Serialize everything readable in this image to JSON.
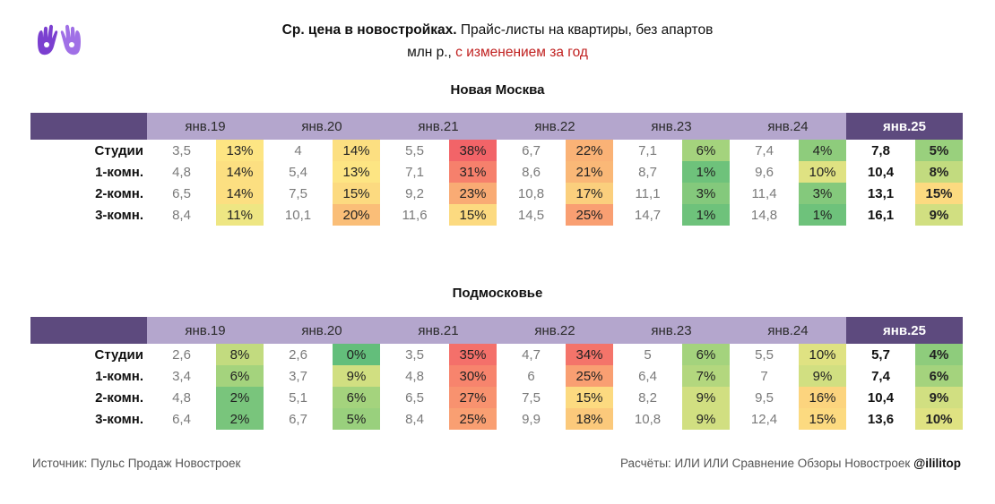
{
  "title": {
    "bold": "Ср. цена в новостройках.",
    "normal": " Прайс-листы на квартиры, без апартов",
    "line2_normal": "млн р., ",
    "line2_red": "с изменением за год"
  },
  "colors": {
    "header_period": "#b4a6cd",
    "header_corner": "#5d4a7e",
    "change_red": "#c0201f"
  },
  "logo": {
    "icon": "two-raised-hands-logo"
  },
  "periods": [
    "янв.19",
    "янв.20",
    "янв.21",
    "янв.22",
    "янв.23",
    "янв.24",
    "янв.25"
  ],
  "chart_data": [
    {
      "type": "table",
      "title": "Новая Москва",
      "columns": [
        "янв.19",
        "янв.20",
        "янв.21",
        "янв.22",
        "янв.23",
        "янв.24",
        "янв.25"
      ],
      "rows": [
        {
          "label": "Студии",
          "prices": [
            "3,5",
            "4",
            "5,5",
            "6,7",
            "7,1",
            "7,4",
            "7,8"
          ],
          "changes": [
            "13%",
            "14%",
            "38%",
            "22%",
            "6%",
            "4%",
            "5%"
          ]
        },
        {
          "label": "1-комн.",
          "prices": [
            "4,8",
            "5,4",
            "7,1",
            "8,6",
            "8,7",
            "9,6",
            "10,4"
          ],
          "changes": [
            "14%",
            "13%",
            "31%",
            "21%",
            "1%",
            "10%",
            "8%"
          ]
        },
        {
          "label": "2-комн.",
          "prices": [
            "6,5",
            "7,5",
            "9,2",
            "10,8",
            "11,1",
            "11,4",
            "13,1"
          ],
          "changes": [
            "14%",
            "15%",
            "23%",
            "17%",
            "3%",
            "3%",
            "15%"
          ]
        },
        {
          "label": "3-комн.",
          "prices": [
            "8,4",
            "10,1",
            "11,6",
            "14,5",
            "14,7",
            "14,8",
            "16,1"
          ],
          "changes": [
            "11%",
            "20%",
            "15%",
            "25%",
            "1%",
            "1%",
            "9%"
          ]
        }
      ]
    },
    {
      "type": "table",
      "title": "Подмосковье",
      "columns": [
        "янв.19",
        "янв.20",
        "янв.21",
        "янв.22",
        "янв.23",
        "янв.24",
        "янв.25"
      ],
      "rows": [
        {
          "label": "Студии",
          "prices": [
            "2,6",
            "2,6",
            "3,5",
            "4,7",
            "5",
            "5,5",
            "5,7"
          ],
          "changes": [
            "8%",
            "0%",
            "35%",
            "34%",
            "6%",
            "10%",
            "4%"
          ]
        },
        {
          "label": "1-комн.",
          "prices": [
            "3,4",
            "3,7",
            "4,8",
            "6",
            "6,4",
            "7",
            "7,4"
          ],
          "changes": [
            "6%",
            "9%",
            "30%",
            "25%",
            "7%",
            "9%",
            "6%"
          ]
        },
        {
          "label": "2-комн.",
          "prices": [
            "4,8",
            "5,1",
            "6,5",
            "7,5",
            "8,2",
            "9,5",
            "10,4"
          ],
          "changes": [
            "2%",
            "6%",
            "27%",
            "15%",
            "9%",
            "16%",
            "9%"
          ]
        },
        {
          "label": "3-комн.",
          "prices": [
            "6,4",
            "6,7",
            "8,4",
            "9,9",
            "10,8",
            "12,4",
            "13,6"
          ],
          "changes": [
            "2%",
            "5%",
            "25%",
            "18%",
            "9%",
            "15%",
            "10%"
          ]
        }
      ]
    }
  ],
  "footer": {
    "source": "Источник: Пульс Продаж Новостроек",
    "credits": "Расчёты: ИЛИ ИЛИ Сравнение Обзоры Новостроек ",
    "handle": "@ililitop"
  }
}
